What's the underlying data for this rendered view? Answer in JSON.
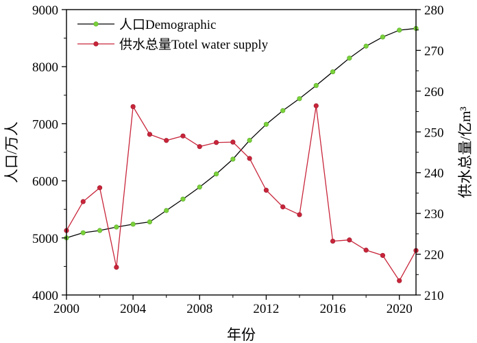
{
  "chart_data": {
    "type": "line",
    "title": "",
    "xlabel": "年份",
    "ylabel_left": "人口/万人",
    "ylabel_right": "供水总量/亿m³",
    "xlim": [
      2000,
      2021
    ],
    "x_ticks": [
      2000,
      2004,
      2008,
      2012,
      2016,
      2020
    ],
    "ylim_left": [
      4000,
      9000
    ],
    "y_ticks_left": [
      4000,
      5000,
      6000,
      7000,
      8000,
      9000
    ],
    "ylim_right": [
      210,
      280
    ],
    "y_ticks_right": [
      210,
      220,
      230,
      240,
      250,
      260,
      270,
      280
    ],
    "grid": false,
    "legend_position": "top-left",
    "x": [
      2000,
      2001,
      2002,
      2003,
      2004,
      2005,
      2006,
      2007,
      2008,
      2009,
      2010,
      2011,
      2012,
      2013,
      2014,
      2015,
      2016,
      2017,
      2018,
      2019,
      2020,
      2021
    ],
    "series": [
      {
        "name": "人口Demographic",
        "axis": "left",
        "line_color": "#000000",
        "marker_color": "#7ad13a",
        "values": [
          5000,
          5090,
          5130,
          5190,
          5240,
          5280,
          5480,
          5680,
          5890,
          6120,
          6380,
          6710,
          6990,
          7230,
          7440,
          7670,
          7910,
          8150,
          8360,
          8520,
          8640,
          8670
        ]
      },
      {
        "name": "供水总量Totel water supply",
        "axis": "right",
        "line_color": "#c8253a",
        "marker_color": "#c8253a",
        "values": [
          225.8,
          232.9,
          236.3,
          216.8,
          256.2,
          249.4,
          247.9,
          249.0,
          246.4,
          247.4,
          247.5,
          243.5,
          235.7,
          231.6,
          229.7,
          256.4,
          223.2,
          223.5,
          221.0,
          219.7,
          213.5,
          220.9
        ]
      }
    ]
  }
}
